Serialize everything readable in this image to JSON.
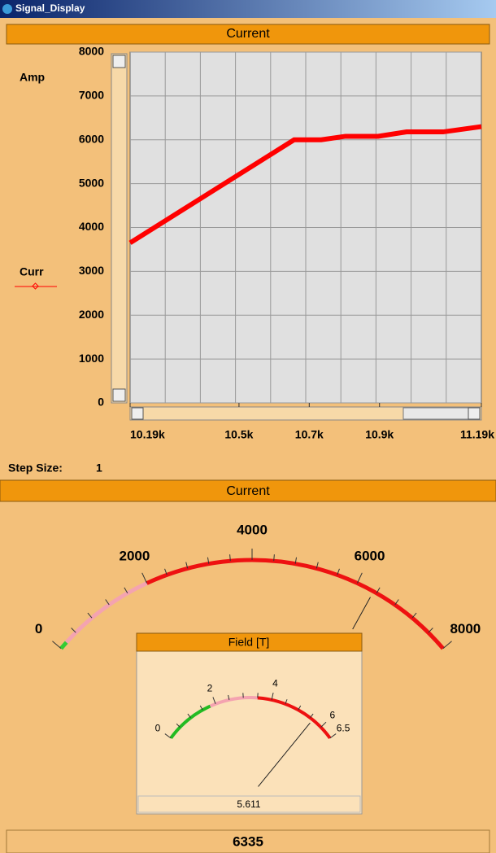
{
  "window": {
    "title": "Signal_Display"
  },
  "chart_panel": {
    "title": "Current",
    "chart": {
      "type": "line",
      "y_label": "Amp",
      "x": [
        10190,
        10657,
        10734,
        10803,
        10896,
        10977,
        11081,
        11190
      ],
      "series": [
        {
          "name": "Curr",
          "color": "#ff0000",
          "values": [
            3650,
            6000,
            6000,
            6080,
            6080,
            6180,
            6180,
            6300
          ]
        }
      ],
      "xlim": [
        10190,
        11190
      ],
      "xticks": [
        {
          "value": 10190,
          "label": "10.19k"
        },
        {
          "value": 10500,
          "label": "10.5k"
        },
        {
          "value": 10700,
          "label": "10.7k"
        },
        {
          "value": 10900,
          "label": "10.9k"
        },
        {
          "value": 11190,
          "label": "11.19k"
        }
      ],
      "xgrid": [
        10290,
        10390,
        10490,
        10590,
        10690,
        10790,
        10890,
        10990,
        11090
      ],
      "ylim": [
        0,
        8000
      ],
      "yticks": [
        0,
        1000,
        2000,
        3000,
        4000,
        5000,
        6000,
        7000,
        8000
      ],
      "grid": true
    },
    "step_size": {
      "label": "Step Size:",
      "value": 1
    }
  },
  "gauge_panel": {
    "title": "Current",
    "gauge": {
      "lim": [
        0,
        8000
      ],
      "value": 6335,
      "ticks": [
        0,
        2000,
        4000,
        6000,
        8000
      ],
      "minor_ticks": [
        400,
        800,
        1200,
        1600,
        2400,
        2800,
        3200,
        3600,
        4400,
        4800,
        5200,
        5600,
        6400,
        6800,
        7200,
        7600
      ],
      "bands": [
        {
          "from": 0,
          "to": 2000,
          "color": "#f4a3b0"
        },
        {
          "from": 2000,
          "to": 8000,
          "color": "#ee1111"
        },
        {
          "from": 0,
          "to": 150,
          "color": "#33cc33"
        }
      ]
    },
    "field_gauge": {
      "title": "Field [T]",
      "lim": [
        0,
        6.5
      ],
      "value": 5.611,
      "ticks": [
        0,
        2,
        4,
        6,
        6.5
      ],
      "minor_ticks": [
        0.5,
        1,
        1.5,
        2.5,
        3,
        3.5,
        4.5,
        5,
        5.5
      ],
      "bands": [
        {
          "from": 0,
          "to": 1.8,
          "color": "#22bb22"
        },
        {
          "from": 1.8,
          "to": 3.5,
          "color": "#f4a3b0"
        },
        {
          "from": 3.5,
          "to": 6.5,
          "color": "#ee1111"
        }
      ]
    }
  }
}
